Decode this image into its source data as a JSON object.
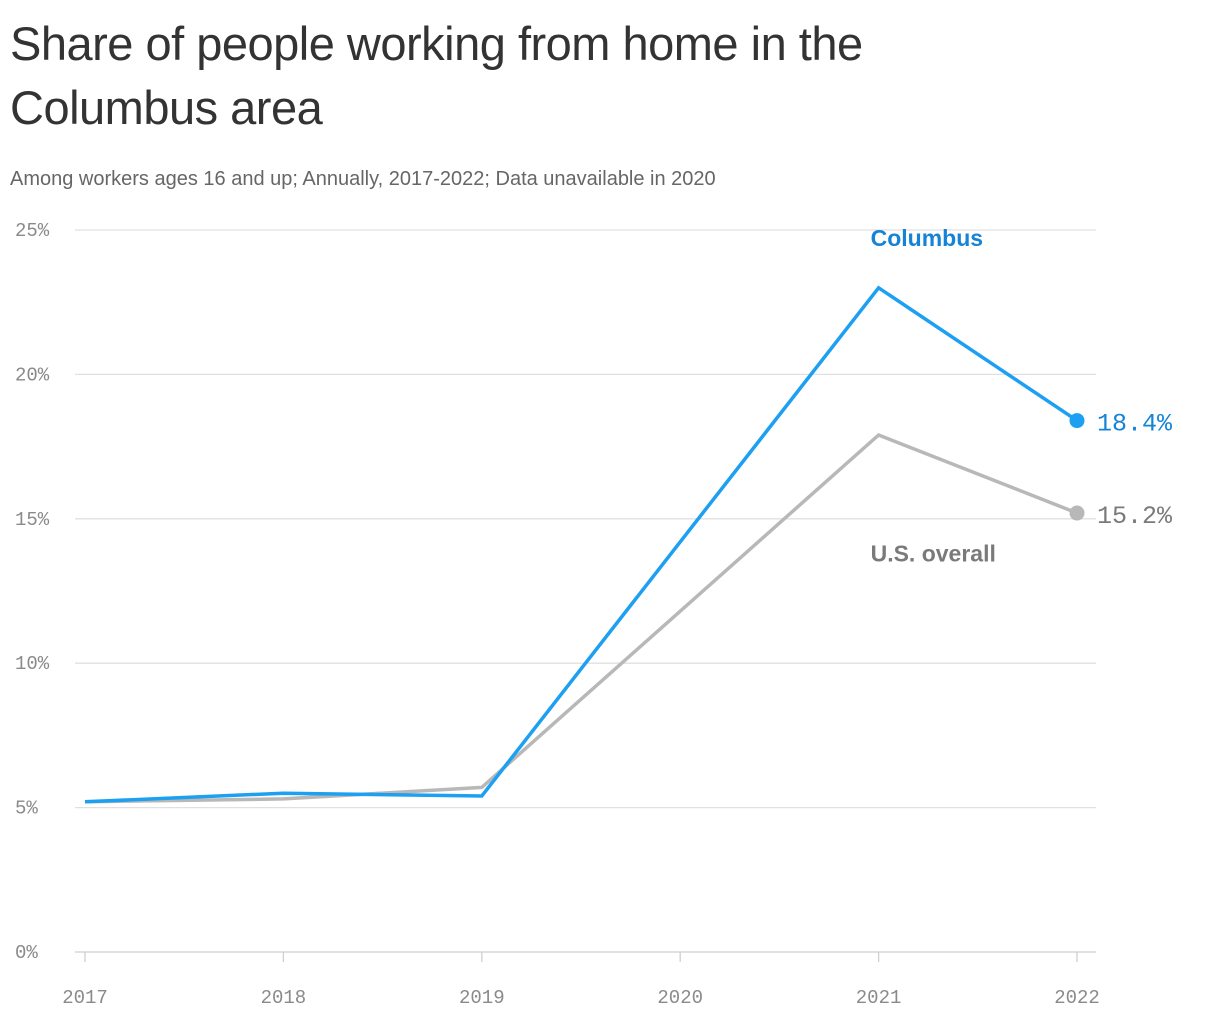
{
  "title": "Share of people working from home in the Columbus area",
  "subtitle": "Among workers ages 16 and up; Annually, 2017-2022; Data unavailable in 2020",
  "chart_data": {
    "type": "line",
    "title": "Share of people working from home in the Columbus area",
    "subtitle": "Among workers ages 16 and up; Annually, 2017-2022; Data unavailable in 2020",
    "x": [
      "2017",
      "2018",
      "2019",
      "2020",
      "2021",
      "2022"
    ],
    "x_tick_labels": [
      "2017",
      "2018",
      "2019",
      "2020",
      "2021",
      "2022"
    ],
    "y_tick_labels": [
      "0%",
      "5%",
      "10%",
      "15%",
      "20%",
      "25%"
    ],
    "y_ticks": [
      0,
      5,
      10,
      15,
      20,
      25
    ],
    "ylim": [
      0,
      25
    ],
    "y_unit": "%",
    "grid": true,
    "series": [
      {
        "name": "U.S. overall",
        "color": "#b8b8b8",
        "label_color": "#7a7a7a",
        "values": [
          5.2,
          5.3,
          5.7,
          null,
          17.9,
          15.2
        ],
        "end_label": "15.2%"
      },
      {
        "name": "Columbus",
        "color": "#1d9ff2",
        "label_color": "#1583d6",
        "values": [
          5.2,
          5.5,
          5.4,
          null,
          23.0,
          18.4
        ],
        "end_label": "18.4%"
      }
    ]
  }
}
